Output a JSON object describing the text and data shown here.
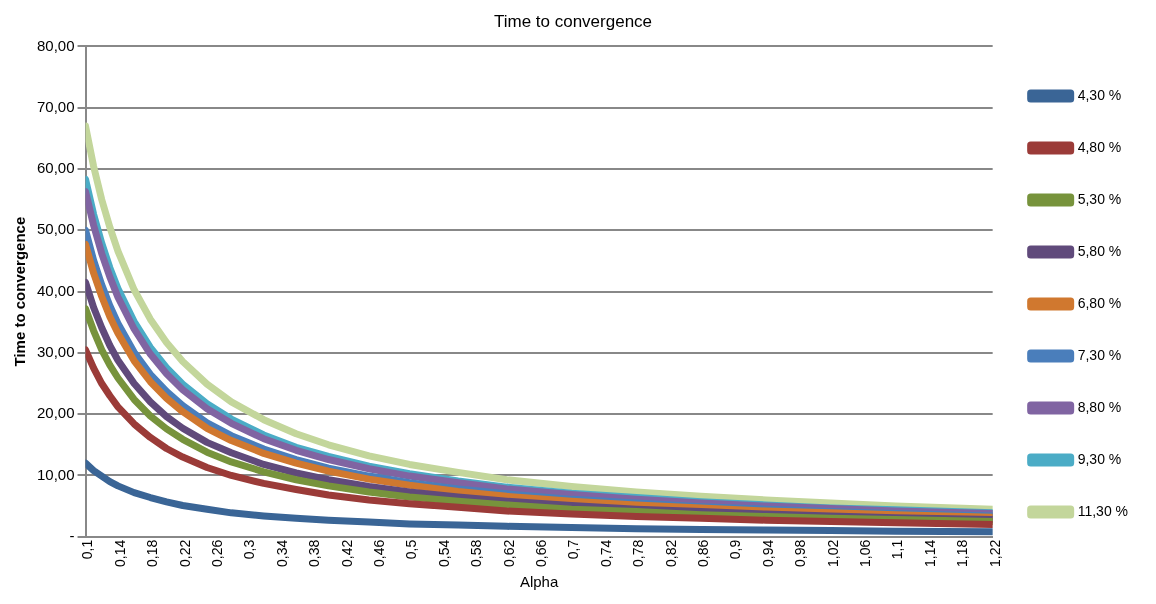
{
  "chart_data": {
    "type": "line",
    "title": "Time to convergence",
    "xlabel": "Alpha",
    "ylabel": "Time to convergence",
    "x": [
      0.1,
      0.11,
      0.12,
      0.13,
      0.14,
      0.16,
      0.18,
      0.2,
      0.22,
      0.25,
      0.28,
      0.32,
      0.36,
      0.4,
      0.45,
      0.5,
      0.56,
      0.62,
      0.7,
      0.78,
      0.86,
      0.94,
      1.02,
      1.1,
      1.22
    ],
    "xlim": [
      0.1,
      1.22
    ],
    "xticks": [
      {
        "value": 0.1,
        "label": "0,1"
      },
      {
        "value": 0.14,
        "label": "0,14"
      },
      {
        "value": 0.18,
        "label": "0,18"
      },
      {
        "value": 0.22,
        "label": "0,22"
      },
      {
        "value": 0.26,
        "label": "0,26"
      },
      {
        "value": 0.3,
        "label": "0,3"
      },
      {
        "value": 0.34,
        "label": "0,34"
      },
      {
        "value": 0.38,
        "label": "0,38"
      },
      {
        "value": 0.42,
        "label": "0,42"
      },
      {
        "value": 0.46,
        "label": "0,46"
      },
      {
        "value": 0.5,
        "label": "0,5"
      },
      {
        "value": 0.54,
        "label": "0,54"
      },
      {
        "value": 0.58,
        "label": "0,58"
      },
      {
        "value": 0.62,
        "label": "0,62"
      },
      {
        "value": 0.66,
        "label": "0,66"
      },
      {
        "value": 0.7,
        "label": "0,7"
      },
      {
        "value": 0.74,
        "label": "0,74"
      },
      {
        "value": 0.78,
        "label": "0,78"
      },
      {
        "value": 0.82,
        "label": "0,82"
      },
      {
        "value": 0.86,
        "label": "0,86"
      },
      {
        "value": 0.9,
        "label": "0,9"
      },
      {
        "value": 0.94,
        "label": "0,94"
      },
      {
        "value": 0.98,
        "label": "0,98"
      },
      {
        "value": 1.02,
        "label": "1,02"
      },
      {
        "value": 1.06,
        "label": "1,06"
      },
      {
        "value": 1.1,
        "label": "1,1"
      },
      {
        "value": 1.14,
        "label": "1,14"
      },
      {
        "value": 1.18,
        "label": "1,18"
      },
      {
        "value": 1.22,
        "label": "1,22"
      }
    ],
    "ylim": [
      0,
      80
    ],
    "yticks": [
      {
        "value": 0,
        "label": "-"
      },
      {
        "value": 10,
        "label": "10,00"
      },
      {
        "value": 20,
        "label": "20,00"
      },
      {
        "value": 30,
        "label": "30,00"
      },
      {
        "value": 40,
        "label": "40,00"
      },
      {
        "value": 50,
        "label": "50,00"
      },
      {
        "value": 60,
        "label": "60,00"
      },
      {
        "value": 70,
        "label": "70,00"
      },
      {
        "value": 80,
        "label": "80,00"
      }
    ],
    "grid": "y",
    "legend": "right",
    "marker": "none",
    "line_style": "solid",
    "series": [
      {
        "name": "4,30 %",
        "color": "#3a6596",
        "values": [
          12.0,
          10.8,
          9.9,
          9.0,
          8.3,
          7.2,
          6.4,
          5.7,
          5.1,
          4.5,
          3.9,
          3.4,
          3.0,
          2.7,
          2.4,
          2.1,
          1.9,
          1.7,
          1.5,
          1.3,
          1.2,
          1.1,
          1.0,
          0.9,
          0.8
        ]
      },
      {
        "name": "4,80 %",
        "color": "#9b3b38",
        "values": [
          30.5,
          27.5,
          25.0,
          23.0,
          21.2,
          18.4,
          16.2,
          14.4,
          13.0,
          11.3,
          10.0,
          8.7,
          7.7,
          6.8,
          6.0,
          5.4,
          4.8,
          4.2,
          3.7,
          3.3,
          3.0,
          2.7,
          2.5,
          2.3,
          2.0
        ]
      },
      {
        "name": "5,30 %",
        "color": "#77933c",
        "values": [
          37.2,
          33.6,
          30.5,
          28.0,
          25.9,
          22.4,
          19.7,
          17.6,
          15.9,
          13.8,
          12.2,
          10.6,
          9.3,
          8.3,
          7.3,
          6.5,
          5.8,
          5.2,
          4.5,
          4.1,
          3.6,
          3.3,
          3.0,
          2.8,
          2.5
        ]
      },
      {
        "name": "5,80 %",
        "color": "#604a7b",
        "values": [
          41.5,
          37.4,
          34.1,
          31.2,
          28.8,
          25.0,
          22.0,
          19.6,
          17.7,
          15.4,
          13.7,
          11.8,
          10.4,
          9.3,
          8.2,
          7.3,
          6.5,
          5.8,
          5.1,
          4.5,
          4.1,
          3.7,
          3.4,
          3.1,
          2.8
        ]
      },
      {
        "name": "6,80 %",
        "color": "#d0782f",
        "values": [
          47.7,
          43.0,
          39.2,
          35.9,
          33.2,
          28.7,
          25.3,
          22.6,
          20.4,
          17.7,
          15.7,
          13.6,
          12.0,
          10.7,
          9.4,
          8.4,
          7.4,
          6.6,
          5.8,
          5.2,
          4.7,
          4.2,
          3.9,
          3.6,
          3.2
        ]
      },
      {
        "name": "7,30 %",
        "color": "#4a7ebb",
        "values": [
          50.0,
          45.1,
          41.1,
          37.7,
          34.8,
          30.1,
          26.5,
          23.7,
          21.4,
          18.6,
          16.5,
          14.3,
          12.6,
          11.2,
          9.9,
          8.8,
          7.8,
          7.0,
          6.1,
          5.5,
          4.9,
          4.5,
          4.1,
          3.8,
          3.4
        ]
      },
      {
        "name": "8,80 %",
        "color": "#8064a2",
        "values": [
          56.3,
          50.8,
          46.2,
          42.4,
          39.1,
          33.9,
          29.8,
          26.6,
          24.0,
          20.9,
          18.5,
          16.0,
          14.1,
          12.6,
          11.1,
          9.9,
          8.8,
          7.8,
          6.9,
          6.1,
          5.5,
          5.0,
          4.6,
          4.2,
          3.8
        ]
      },
      {
        "name": "9,30 %",
        "color": "#4bacc6",
        "values": [
          58.3,
          52.6,
          47.9,
          43.9,
          40.5,
          35.1,
          30.9,
          27.6,
          24.9,
          21.7,
          19.2,
          16.6,
          14.6,
          13.1,
          11.5,
          10.3,
          9.1,
          8.1,
          7.1,
          6.4,
          5.7,
          5.2,
          4.7,
          4.4,
          3.9
        ]
      },
      {
        "name": "11,30 %",
        "color": "#c3d69b",
        "values": [
          67.0,
          60.4,
          55.0,
          50.5,
          46.6,
          40.3,
          35.5,
          31.7,
          28.6,
          24.9,
          22.0,
          19.1,
          16.8,
          15.0,
          13.2,
          11.8,
          10.5,
          9.3,
          8.2,
          7.3,
          6.6,
          6.0,
          5.5,
          5.0,
          4.5
        ]
      }
    ]
  }
}
